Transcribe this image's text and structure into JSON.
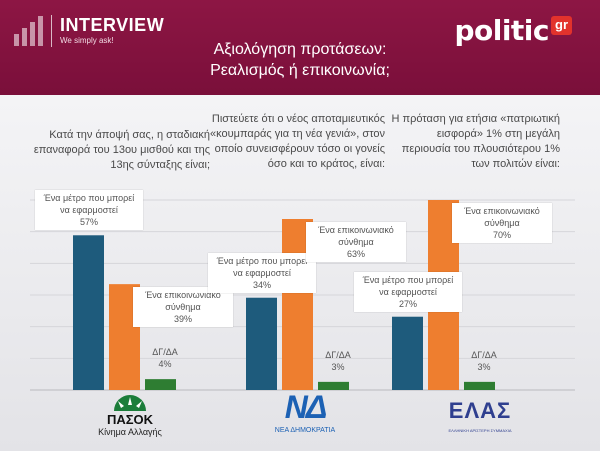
{
  "header": {
    "brand_name": "INTERVIEW",
    "brand_tagline": "We simply ask!",
    "logo_text": "politic",
    "logo_badge": "gr",
    "title_line1": "Αξιολόγηση προτάσεων:",
    "title_line2": "Ρεαλισμός ή επικοινωνία;"
  },
  "questions": [
    "Κατά την άποψή σας, η σταδιακή επαναφορά του 13ου μισθού και της 13ης σύνταξης είναι;",
    "Πιστεύετε ότι ο νέος αποταμιευτικός «κουμπαράς για τη νέα γενιά», στον οποίο συνεισφέρουν τόσο οι γονείς όσο και το κράτος, είναι:",
    "Η πρόταση για ετήσια «πατριωτική εισφορά» 1% στη μεγάλη περιουσία του πλουσιότερου 1% των πολιτών είναι:"
  ],
  "parties": [
    {
      "name": "ΠΑΣΟΚ",
      "subtitle": "Κίνημα Αλλαγής"
    },
    {
      "name": "ΝΔ",
      "subtitle": "ΝΕΑ ΔΗΜΟΚΡΑΤΙΑ"
    },
    {
      "name": "ΕΛΑΣ",
      "subtitle": "ΕΛΛΗΝΙΚΗ ΑΡΙΣΤΕΡΗ ΣΥΜΜΑΧΙΑ"
    }
  ],
  "chart_data": {
    "type": "bar",
    "categories": [
      "ΠΑΣΟΚ",
      "ΝΔ",
      "ΕΛΑΣ"
    ],
    "series": [
      {
        "name": "Ένα μέτρο που μπορεί να εφαρμοστεί",
        "values": [
          57,
          34,
          27
        ],
        "color": "#1e5b7c"
      },
      {
        "name": "Ένα επικοινωνιακό σύνθημα",
        "values": [
          39,
          63,
          70
        ],
        "color": "#ee7e2f"
      },
      {
        "name": "ΔΓ/ΔΑ",
        "values": [
          4,
          3,
          3
        ],
        "color": "#2e7d32"
      }
    ],
    "value_labels": [
      [
        "57%",
        "39%",
        "4%"
      ],
      [
        "34%",
        "63%",
        "3%"
      ],
      [
        "27%",
        "70%",
        "3%"
      ]
    ],
    "ylim": [
      0,
      70
    ],
    "grid": true
  }
}
